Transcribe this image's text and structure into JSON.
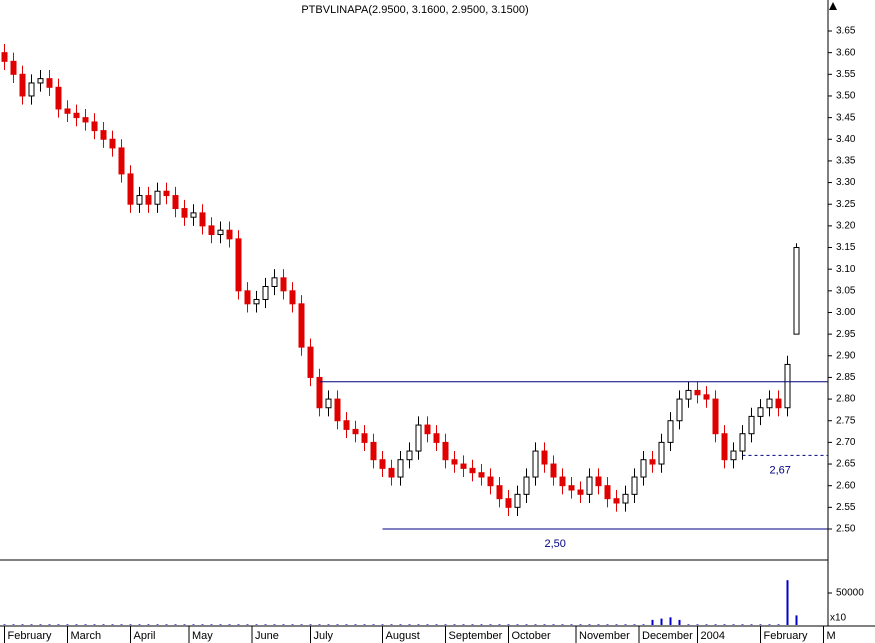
{
  "chart_data": {
    "type": "candlestick",
    "title": "PTBVLINAPA(2.9500, 3.1600, 2.9500, 3.1500)",
    "open": [
      3.6,
      3.58,
      3.55,
      3.5,
      3.53,
      3.54,
      3.52,
      3.47,
      3.46,
      3.45,
      3.44,
      3.42,
      3.4,
      3.38,
      3.32,
      3.25,
      3.27,
      3.25,
      3.28,
      3.27,
      3.24,
      3.22,
      3.23,
      3.2,
      3.18,
      3.19,
      3.17,
      3.05,
      3.02,
      3.03,
      3.06,
      3.08,
      3.05,
      3.02,
      2.92,
      2.85,
      2.78,
      2.8,
      2.75,
      2.73,
      2.72,
      2.7,
      2.66,
      2.64,
      2.62,
      2.66,
      2.68,
      2.74,
      2.72,
      2.7,
      2.66,
      2.65,
      2.64,
      2.63,
      2.62,
      2.6,
      2.57,
      2.55,
      2.58,
      2.62,
      2.68,
      2.65,
      2.62,
      2.6,
      2.59,
      2.58,
      2.62,
      2.6,
      2.57,
      2.56,
      2.58,
      2.62,
      2.66,
      2.65,
      2.7,
      2.75,
      2.8,
      2.82,
      2.81,
      2.8,
      2.72,
      2.66,
      2.68,
      2.72,
      2.76,
      2.78,
      2.8,
      2.78,
      2.95
    ],
    "high": [
      3.62,
      3.6,
      3.57,
      3.55,
      3.56,
      3.56,
      3.54,
      3.49,
      3.48,
      3.47,
      3.46,
      3.44,
      3.42,
      3.4,
      3.34,
      3.29,
      3.29,
      3.3,
      3.3,
      3.29,
      3.26,
      3.25,
      3.25,
      3.22,
      3.21,
      3.21,
      3.19,
      3.07,
      3.05,
      3.08,
      3.1,
      3.1,
      3.07,
      3.04,
      2.94,
      2.87,
      2.82,
      2.82,
      2.77,
      2.75,
      2.74,
      2.72,
      2.68,
      2.66,
      2.68,
      2.7,
      2.76,
      2.76,
      2.74,
      2.72,
      2.68,
      2.67,
      2.66,
      2.65,
      2.64,
      2.62,
      2.59,
      2.6,
      2.64,
      2.7,
      2.7,
      2.67,
      2.64,
      2.62,
      2.61,
      2.64,
      2.64,
      2.62,
      2.59,
      2.6,
      2.64,
      2.68,
      2.68,
      2.72,
      2.77,
      2.82,
      2.84,
      2.84,
      2.83,
      2.82,
      2.74,
      2.7,
      2.74,
      2.78,
      2.8,
      2.82,
      2.82,
      2.9,
      3.16
    ],
    "low": [
      3.56,
      3.53,
      3.48,
      3.48,
      3.51,
      3.5,
      3.45,
      3.44,
      3.43,
      3.42,
      3.4,
      3.38,
      3.36,
      3.3,
      3.23,
      3.23,
      3.23,
      3.23,
      3.25,
      3.22,
      3.2,
      3.2,
      3.18,
      3.16,
      3.16,
      3.15,
      3.03,
      3.0,
      3.0,
      3.01,
      3.04,
      3.03,
      3.0,
      2.9,
      2.83,
      2.76,
      2.76,
      2.73,
      2.71,
      2.7,
      2.68,
      2.64,
      2.62,
      2.6,
      2.6,
      2.64,
      2.66,
      2.7,
      2.68,
      2.64,
      2.63,
      2.62,
      2.61,
      2.6,
      2.58,
      2.55,
      2.53,
      2.53,
      2.56,
      2.6,
      2.63,
      2.6,
      2.58,
      2.57,
      2.56,
      2.56,
      2.58,
      2.55,
      2.54,
      2.54,
      2.56,
      2.6,
      2.63,
      2.63,
      2.68,
      2.73,
      2.78,
      2.79,
      2.78,
      2.7,
      2.64,
      2.64,
      2.66,
      2.7,
      2.74,
      2.76,
      2.76,
      2.76,
      2.95
    ],
    "close": [
      3.58,
      3.55,
      3.5,
      3.53,
      3.54,
      3.52,
      3.47,
      3.46,
      3.45,
      3.44,
      3.42,
      3.4,
      3.38,
      3.32,
      3.25,
      3.27,
      3.25,
      3.28,
      3.27,
      3.24,
      3.22,
      3.23,
      3.2,
      3.18,
      3.19,
      3.17,
      3.05,
      3.02,
      3.03,
      3.06,
      3.08,
      3.05,
      3.02,
      2.92,
      2.85,
      2.78,
      2.8,
      2.75,
      2.73,
      2.72,
      2.7,
      2.66,
      2.64,
      2.62,
      2.66,
      2.68,
      2.74,
      2.72,
      2.7,
      2.66,
      2.65,
      2.64,
      2.63,
      2.62,
      2.6,
      2.57,
      2.55,
      2.58,
      2.62,
      2.68,
      2.65,
      2.62,
      2.6,
      2.59,
      2.58,
      2.62,
      2.6,
      2.57,
      2.56,
      2.58,
      2.62,
      2.66,
      2.65,
      2.7,
      2.75,
      2.8,
      2.82,
      2.81,
      2.8,
      2.72,
      2.66,
      2.68,
      2.72,
      2.76,
      2.78,
      2.8,
      2.78,
      2.88,
      3.15
    ],
    "volume": [
      1000,
      1000,
      1000,
      1000,
      1000,
      1000,
      1000,
      1000,
      1000,
      1000,
      1000,
      1000,
      1000,
      1000,
      1000,
      1000,
      1000,
      1000,
      1000,
      1000,
      1000,
      1000,
      1000,
      1000,
      1000,
      1000,
      1000,
      1000,
      1000,
      1000,
      1000,
      1000,
      1000,
      1000,
      1000,
      1000,
      1000,
      1000,
      1000,
      1000,
      1000,
      1000,
      1000,
      1000,
      1000,
      1000,
      1000,
      1000,
      1000,
      1000,
      1000,
      1000,
      1000,
      1000,
      1000,
      1000,
      1000,
      1000,
      1000,
      1000,
      1000,
      1000,
      1000,
      1000,
      1000,
      1000,
      1000,
      1000,
      1000,
      1000,
      1000,
      1000,
      8000,
      10000,
      12000,
      8000,
      1000,
      1000,
      1000,
      1000,
      1000,
      1000,
      1000,
      1000,
      1000,
      1000,
      1000,
      70000,
      15000
    ],
    "up_color": "#ffffff",
    "down_color": "#e00000",
    "volume_color": "#0000cc",
    "level_color": "#000080",
    "xlim": [
      -0.5,
      91.5
    ],
    "xticks": [
      {
        "value": 0,
        "label": "February"
      },
      {
        "value": 7,
        "label": "March"
      },
      {
        "value": 14,
        "label": "April"
      },
      {
        "value": 20.5,
        "label": "May"
      },
      {
        "value": 27.5,
        "label": "June"
      },
      {
        "value": 34,
        "label": "July"
      },
      {
        "value": 42,
        "label": "August"
      },
      {
        "value": 49,
        "label": "September"
      },
      {
        "value": 56,
        "label": "October"
      },
      {
        "value": 63.5,
        "label": "November"
      },
      {
        "value": 70.5,
        "label": "December"
      },
      {
        "value": 77,
        "label": "2004"
      },
      {
        "value": 84,
        "label": "February"
      },
      {
        "value": 91,
        "label": "M"
      }
    ],
    "ylim": [
      2.43,
      3.72
    ],
    "yticks": [
      {
        "value": 2.5,
        "label": "2.50"
      },
      {
        "value": 2.55,
        "label": "2.55"
      },
      {
        "value": 2.6,
        "label": "2.60"
      },
      {
        "value": 2.65,
        "label": "2.65"
      },
      {
        "value": 2.7,
        "label": "2.70"
      },
      {
        "value": 2.75,
        "label": "2.75"
      },
      {
        "value": 2.8,
        "label": "2.80"
      },
      {
        "value": 2.85,
        "label": "2.85"
      },
      {
        "value": 2.9,
        "label": "2.90"
      },
      {
        "value": 2.95,
        "label": "2.95"
      },
      {
        "value": 3.0,
        "label": "3.00"
      },
      {
        "value": 3.05,
        "label": "3.05"
      },
      {
        "value": 3.1,
        "label": "3.10"
      },
      {
        "value": 3.15,
        "label": "3.15"
      },
      {
        "value": 3.2,
        "label": "3.20"
      },
      {
        "value": 3.25,
        "label": "3.25"
      },
      {
        "value": 3.3,
        "label": "3.30"
      },
      {
        "value": 3.35,
        "label": "3.35"
      },
      {
        "value": 3.4,
        "label": "3.40"
      },
      {
        "value": 3.45,
        "label": "3.45"
      },
      {
        "value": 3.5,
        "label": "3.50"
      },
      {
        "value": 3.55,
        "label": "3.55"
      },
      {
        "value": 3.6,
        "label": "3.60"
      },
      {
        "value": 3.65,
        "label": "3.65"
      }
    ],
    "volume_ylim": [
      0,
      100000
    ],
    "volume_yticks": [
      50000
    ],
    "volume_unit": "x10",
    "levels": [
      {
        "value": 2.84,
        "from": 35,
        "dashed": false
      },
      {
        "value": 2.5,
        "label": "2,50",
        "from": 42,
        "label_at": 60,
        "dashed": false
      },
      {
        "value": 2.67,
        "label": "2,67",
        "from": 82,
        "label_at": 85,
        "dashed": true
      }
    ]
  }
}
